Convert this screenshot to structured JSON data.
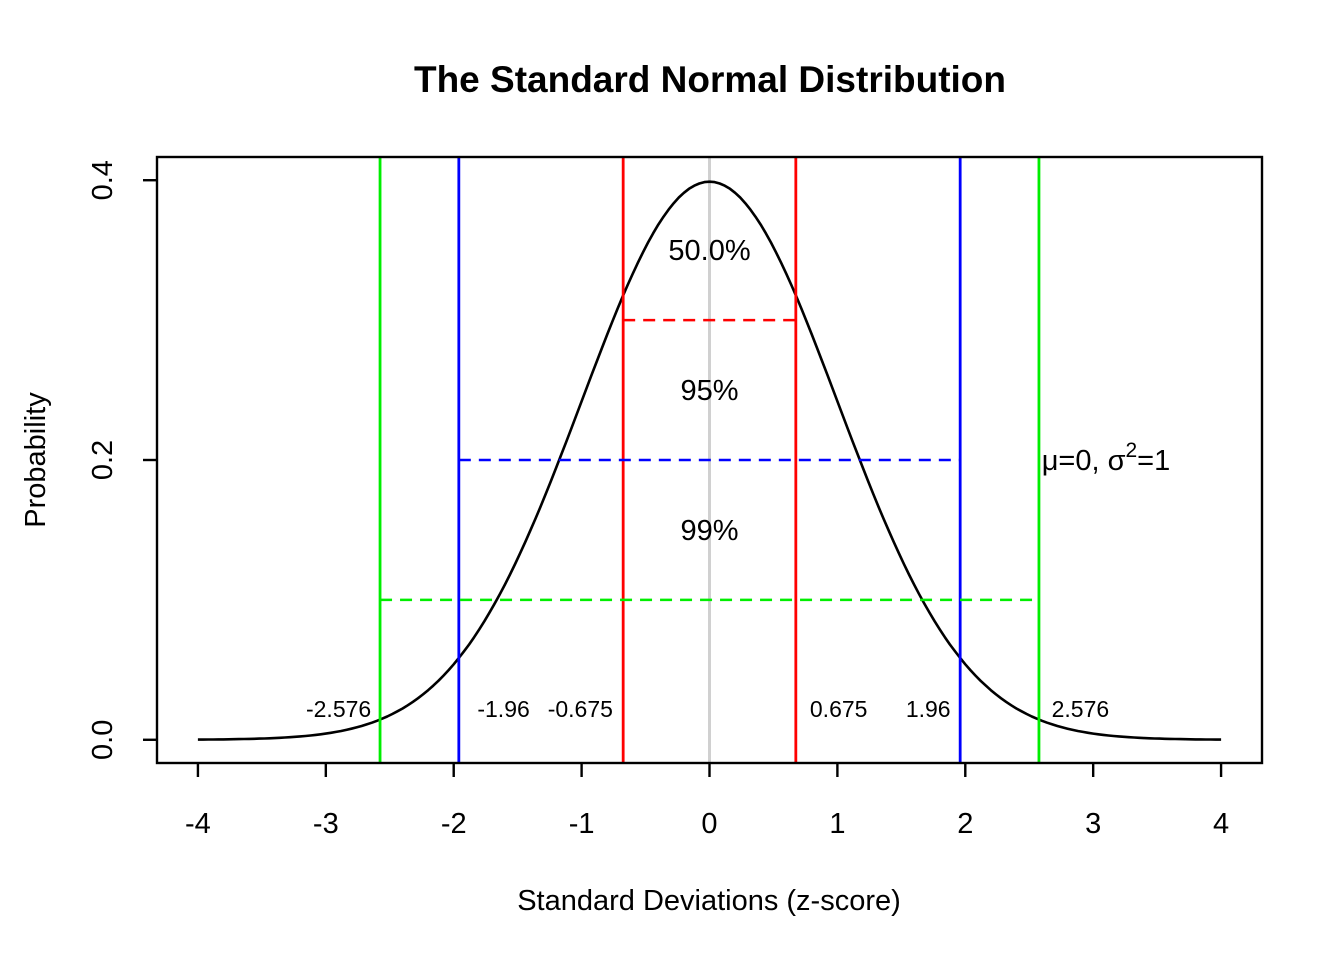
{
  "chart_data": {
    "type": "line",
    "title": "The Standard Normal Distribution",
    "xlabel": "Standard Deviations (z-score)",
    "ylabel": "Probability",
    "xlim": [
      -4.32,
      4.32
    ],
    "ylim": [
      -0.0166,
      0.4166
    ],
    "x_ticks": [
      -4,
      -3,
      -2,
      -1,
      0,
      1,
      2,
      3,
      4
    ],
    "x_tick_labels": [
      "-4",
      "-3",
      "-2",
      "-1",
      "0",
      "1",
      "2",
      "3",
      "4"
    ],
    "y_ticks": [
      0.0,
      0.2,
      0.4
    ],
    "y_tick_labels": [
      "0.0",
      "0.2",
      "0.4"
    ],
    "grid": false,
    "legend": null,
    "curve": {
      "name": "standard-normal-pdf",
      "color": "#000000",
      "x_range": [
        -4,
        4
      ],
      "formula": "f(z) = exp(-z^2/2) / sqrt(2*pi)",
      "sample_points": [
        [
          -4,
          0.0001
        ],
        [
          -3,
          0.0044
        ],
        [
          -2,
          0.054
        ],
        [
          -1,
          0.242
        ],
        [
          0,
          0.3989
        ],
        [
          1,
          0.242
        ],
        [
          2,
          0.054
        ],
        [
          3,
          0.0044
        ],
        [
          4,
          0.0001
        ]
      ]
    },
    "mean_line": {
      "z": 0,
      "color": "#D0D0D0"
    },
    "intervals": [
      {
        "percent_label": "50.0%",
        "z_critical": 0.675,
        "color": "#FF0000",
        "dash_y": 0.3,
        "label_y": 0.35
      },
      {
        "percent_label": "95%",
        "z_critical": 1.96,
        "color": "#0000FF",
        "dash_y": 0.2,
        "label_y": 0.25
      },
      {
        "percent_label": "99%",
        "z_critical": 2.576,
        "color": "#00EE00",
        "dash_y": 0.1,
        "label_y": 0.15
      }
    ],
    "z_value_labels": [
      {
        "text": "-2.576",
        "x": -2.9,
        "y": 0.022
      },
      {
        "text": "-1.96",
        "x": -1.61,
        "y": 0.022
      },
      {
        "text": "-0.675",
        "x": -1.01,
        "y": 0.022
      },
      {
        "text": "0.675",
        "x": 1.01,
        "y": 0.022
      },
      {
        "text": "1.96",
        "x": 1.71,
        "y": 0.022
      },
      {
        "text": "2.576",
        "x": 2.9,
        "y": 0.022
      }
    ],
    "annotation": {
      "text": "μ=0, σ²=1",
      "parts": {
        "prefix": "μ=0, σ",
        "superscript": "2",
        "suffix": "=1"
      },
      "x": 3.1,
      "y": 0.2
    }
  }
}
